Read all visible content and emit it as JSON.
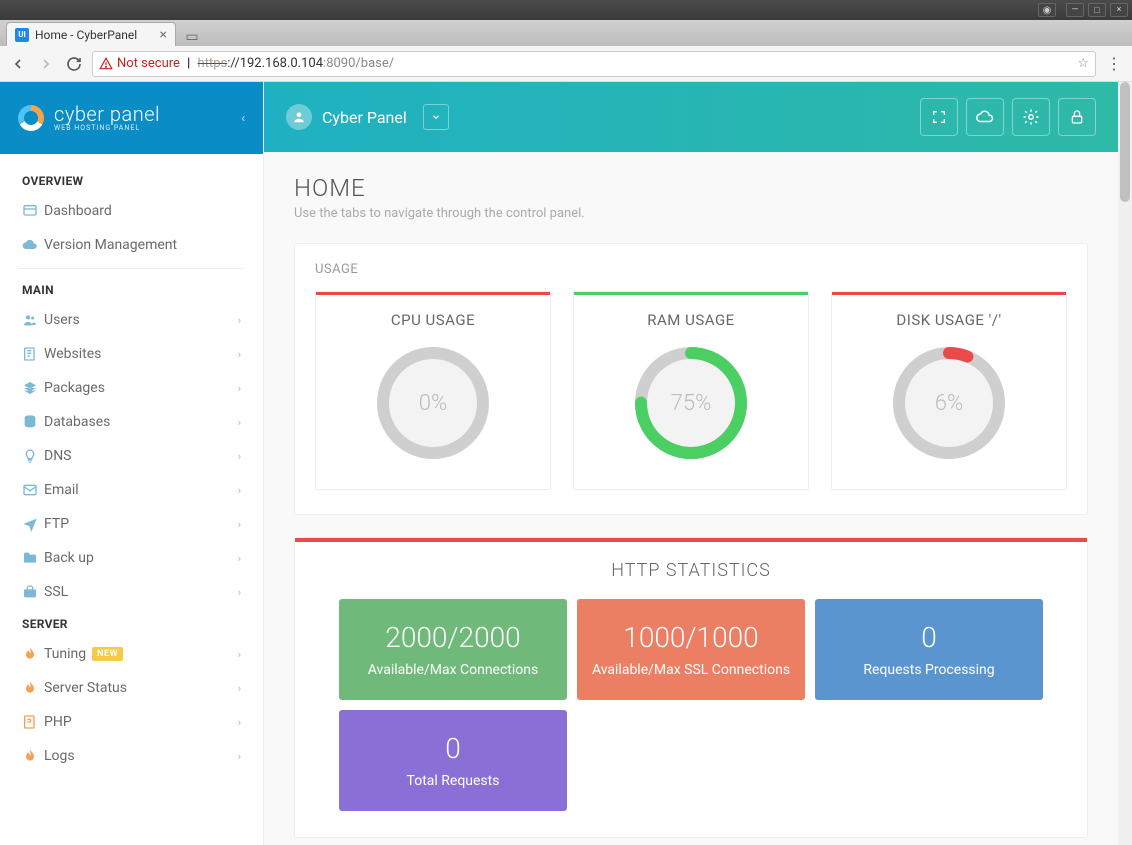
{
  "os": {
    "min_icon": "—",
    "max_icon": "□",
    "close_icon": "×",
    "avatar_icon": "◉"
  },
  "browser": {
    "tab_title": "Home - CyberPanel",
    "favicon": "UI",
    "url_https": "https",
    "url_main": "://192.168.0.104",
    "url_port": ":8090/base/",
    "not_secure_label": "Not secure"
  },
  "logo": {
    "brand": "cyber panel",
    "sub": "WEB HOSTING PANEL"
  },
  "topbar": {
    "username": "Cyber Panel"
  },
  "sidebar": {
    "sections": {
      "overview": "OVERVIEW",
      "main": "MAIN",
      "server": "SERVER"
    },
    "items": {
      "dashboard": "Dashboard",
      "version": "Version Management",
      "users": "Users",
      "websites": "Websites",
      "packages": "Packages",
      "databases": "Databases",
      "dns": "DNS",
      "email": "Email",
      "ftp": "FTP",
      "backup": "Back up",
      "ssl": "SSL",
      "tuning": "Tuning",
      "tuning_badge": "NEW",
      "serverstatus": "Server Status",
      "php": "PHP",
      "logs": "Logs"
    }
  },
  "page": {
    "title": "HOME",
    "subtitle": "Use the tabs to navigate through the control panel."
  },
  "usage": {
    "panel_title": "USAGE",
    "cards": [
      {
        "title": "CPU USAGE",
        "value": 0,
        "label": "0%",
        "bar_color": "#e94b4b",
        "ring_color": "#cfcfcf"
      },
      {
        "title": "RAM USAGE",
        "value": 75,
        "label": "75%",
        "bar_color": "#4bcf63",
        "ring_color": "#4bcf63"
      },
      {
        "title": "DISK USAGE '/'",
        "value": 6,
        "label": "6%",
        "bar_color": "#e94b4b",
        "ring_color": "#e94b4b"
      }
    ],
    "track_color": "#cfcfcf",
    "inner_fill": "#f3f3f3"
  },
  "http": {
    "title": "HTTP STATISTICS",
    "bar_color": "#e94b4b",
    "stats": [
      {
        "value": "2000/2000",
        "label": "Available/Max Connections",
        "bg": "#6fba7a"
      },
      {
        "value": "1000/1000",
        "label": "Available/Max SSL Connections",
        "bg": "#ec7e63"
      },
      {
        "value": "0",
        "label": "Requests Processing",
        "bg": "#5a95cf"
      },
      {
        "value": "0",
        "label": "Total Requests",
        "bg": "#8a70d6"
      }
    ]
  }
}
